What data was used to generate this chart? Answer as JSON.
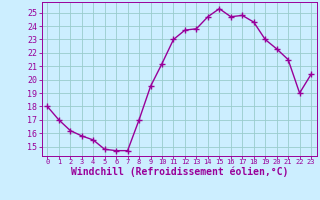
{
  "x": [
    0,
    1,
    2,
    3,
    4,
    5,
    6,
    7,
    8,
    9,
    10,
    11,
    12,
    13,
    14,
    15,
    16,
    17,
    18,
    19,
    20,
    21,
    22,
    23
  ],
  "y": [
    18,
    17,
    16.2,
    15.8,
    15.5,
    14.8,
    14.7,
    14.7,
    17,
    19.5,
    21.2,
    23,
    23.7,
    23.8,
    24.7,
    25.3,
    24.7,
    24.8,
    24.3,
    23.0,
    22.3,
    21.5,
    19.0,
    20.4
  ],
  "line_color": "#990099",
  "marker": "+",
  "markersize": 4,
  "linewidth": 1.0,
  "xlabel": "Windchill (Refroidissement éolien,°C)",
  "xlabel_fontsize": 7,
  "ylabel_ticks": [
    15,
    16,
    17,
    18,
    19,
    20,
    21,
    22,
    23,
    24,
    25
  ],
  "xlim": [
    -0.5,
    23.5
  ],
  "ylim": [
    14.3,
    25.8
  ],
  "xticks": [
    0,
    1,
    2,
    3,
    4,
    5,
    6,
    7,
    8,
    9,
    10,
    11,
    12,
    13,
    14,
    15,
    16,
    17,
    18,
    19,
    20,
    21,
    22,
    23
  ],
  "background_color": "#cceeff",
  "grid_color": "#99cccc",
  "tick_color": "#990099",
  "label_color": "#990099"
}
